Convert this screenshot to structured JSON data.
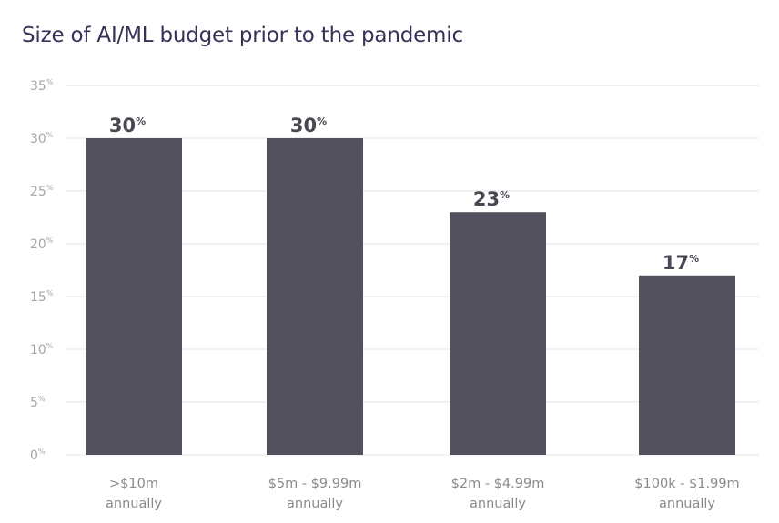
{
  "chart_data": {
    "type": "bar",
    "title": "Size of AI/ML budget prior to the pandemic",
    "xlabel": "",
    "ylabel": "",
    "categories": [
      [
        ">$10m",
        "annually"
      ],
      [
        "$5m - $9.99m",
        "annually"
      ],
      [
        "$2m - $4.99m",
        "annually"
      ],
      [
        "$100k - $1.99m",
        "annually"
      ]
    ],
    "values": [
      30,
      30,
      23,
      17
    ],
    "data_labels": [
      "30",
      "30",
      "23",
      "17"
    ],
    "value_suffix": "%",
    "ylim": [
      0,
      35
    ],
    "yticks": [
      0,
      5,
      10,
      15,
      20,
      25,
      30,
      35
    ],
    "ytick_labels": [
      "0",
      "5",
      "10",
      "15",
      "20",
      "25",
      "30",
      "35"
    ],
    "grid": true,
    "legend": "none",
    "colors": {
      "bar": "#54515f",
      "grid": "#e3e3e3",
      "title": "#3b3058"
    }
  }
}
